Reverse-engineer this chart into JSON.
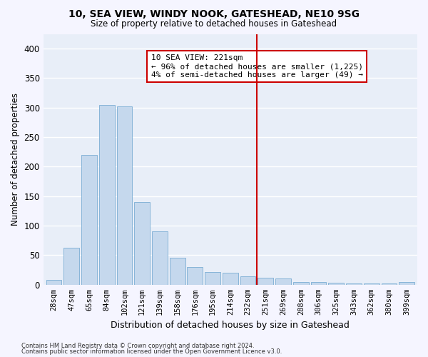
{
  "title": "10, SEA VIEW, WINDY NOOK, GATESHEAD, NE10 9SG",
  "subtitle": "Size of property relative to detached houses in Gateshead",
  "xlabel": "Distribution of detached houses by size in Gateshead",
  "ylabel": "Number of detached properties",
  "bar_color": "#c5d8ed",
  "bar_edge_color": "#7aadd4",
  "background_color": "#e8eef8",
  "grid_color": "#ffffff",
  "categories": [
    "28sqm",
    "47sqm",
    "65sqm",
    "84sqm",
    "102sqm",
    "121sqm",
    "139sqm",
    "158sqm",
    "176sqm",
    "195sqm",
    "214sqm",
    "232sqm",
    "251sqm",
    "269sqm",
    "288sqm",
    "306sqm",
    "325sqm",
    "343sqm",
    "362sqm",
    "380sqm",
    "399sqm"
  ],
  "values": [
    8,
    63,
    220,
    305,
    302,
    140,
    90,
    46,
    30,
    21,
    20,
    14,
    12,
    11,
    5,
    5,
    3,
    2,
    2,
    2,
    5
  ],
  "vline_x": 11.5,
  "vline_color": "#cc0000",
  "annotation_text": "10 SEA VIEW: 221sqm\n← 96% of detached houses are smaller (1,225)\n4% of semi-detached houses are larger (49) →",
  "ylim": [
    0,
    425
  ],
  "yticks": [
    0,
    50,
    100,
    150,
    200,
    250,
    300,
    350,
    400
  ],
  "footer_line1": "Contains HM Land Registry data © Crown copyright and database right 2024.",
  "footer_line2": "Contains public sector information licensed under the Open Government Licence v3.0."
}
